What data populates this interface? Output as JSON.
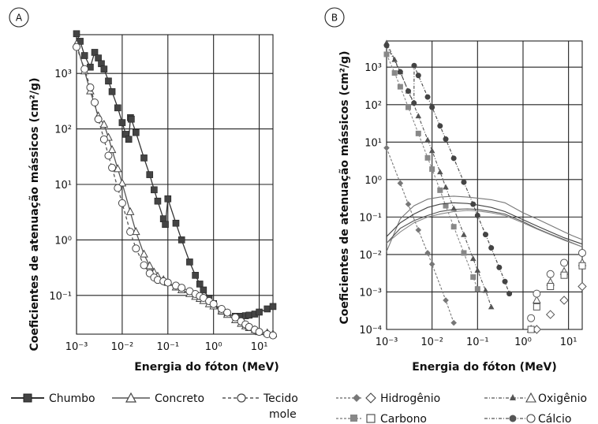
{
  "chart_data": [
    {
      "panel": "A",
      "type": "line",
      "xlabel": "Energia do fóton (MeV)",
      "ylabel": "Coeficientes de atenuação mássicos (cm²/g)",
      "xscale": "log",
      "yscale": "log",
      "xlim": [
        0.001,
        20
      ],
      "ylim": [
        0.02,
        5000
      ],
      "xticks": [
        "10⁻³",
        "10⁻²",
        "10⁻¹",
        "10⁰",
        "10¹"
      ],
      "yticks": [
        "10⁻¹",
        "10⁰",
        "10¹",
        "10²",
        "10³"
      ],
      "grid": true,
      "series": [
        {
          "name": "Chumbo",
          "color": "#333333",
          "marker": "square-filled",
          "dash": "solid",
          "x": [
            0.001,
            0.0012,
            0.0015,
            0.002,
            0.0025,
            0.003,
            0.0035,
            0.004,
            0.005,
            0.006,
            0.008,
            0.01,
            0.012,
            0.0139,
            0.0152,
            0.0158,
            0.02,
            0.03,
            0.04,
            0.05,
            0.06,
            0.08,
            0.088,
            0.1,
            0.15,
            0.2,
            0.3,
            0.4,
            0.5,
            0.6,
            0.8,
            1,
            1.5,
            2,
            3,
            4,
            5,
            6,
            8,
            10,
            15,
            20
          ],
          "y": [
            5200,
            3800,
            2100,
            1300,
            2400,
            1900,
            1500,
            1200,
            730,
            470,
            240,
            130,
            80,
            65,
            160,
            150,
            86,
            30,
            15,
            8,
            5.0,
            2.4,
            1.9,
            5.5,
            2.0,
            1.0,
            0.4,
            0.23,
            0.16,
            0.125,
            0.089,
            0.071,
            0.052,
            0.046,
            0.042,
            0.042,
            0.043,
            0.044,
            0.046,
            0.05,
            0.057,
            0.063
          ]
        },
        {
          "name": "Concreto",
          "color": "#555555",
          "marker": "triangle-open",
          "dash": "solid",
          "x": [
            0.001,
            0.0015,
            0.002,
            0.003,
            0.004,
            0.005,
            0.006,
            0.008,
            0.01,
            0.015,
            0.02,
            0.03,
            0.04,
            0.05,
            0.06,
            0.08,
            0.1,
            0.15,
            0.2,
            0.3,
            0.4,
            0.5,
            0.6,
            0.8,
            1,
            1.5,
            2,
            3,
            4,
            5,
            6,
            8,
            10,
            15,
            20
          ],
          "y": [
            3400,
            1100,
            480,
            170,
            120,
            70,
            42,
            19,
            10.5,
            3.2,
            1.4,
            0.55,
            0.34,
            0.26,
            0.22,
            0.19,
            0.17,
            0.14,
            0.125,
            0.107,
            0.095,
            0.087,
            0.08,
            0.07,
            0.064,
            0.052,
            0.045,
            0.036,
            0.031,
            0.028,
            0.026,
            0.024,
            0.022,
            0.021,
            0.02
          ]
        },
        {
          "name": "Tecido mole",
          "color": "#555555",
          "marker": "circle-open",
          "dash": "dashed",
          "x": [
            0.001,
            0.0015,
            0.002,
            0.0025,
            0.003,
            0.004,
            0.005,
            0.006,
            0.008,
            0.01,
            0.015,
            0.02,
            0.03,
            0.04,
            0.05,
            0.06,
            0.08,
            0.1,
            0.15,
            0.2,
            0.3,
            0.4,
            0.5,
            0.6,
            0.8,
            1,
            1.5,
            2,
            3,
            4,
            5,
            6,
            8,
            10,
            15,
            20
          ],
          "y": [
            3000,
            1200,
            560,
            300,
            150,
            65,
            33,
            20,
            8.6,
            4.6,
            1.4,
            0.7,
            0.35,
            0.25,
            0.21,
            0.19,
            0.18,
            0.17,
            0.15,
            0.137,
            0.119,
            0.106,
            0.097,
            0.09,
            0.079,
            0.07,
            0.057,
            0.049,
            0.04,
            0.034,
            0.03,
            0.027,
            0.024,
            0.022,
            0.02,
            0.019
          ]
        }
      ]
    },
    {
      "panel": "B",
      "type": "line",
      "xlabel": "Energia do fóton (MeV)",
      "ylabel": "Coeficientes de atenuação mássicos (cm²/g)",
      "xscale": "log",
      "yscale": "log",
      "xlim": [
        0.001,
        20
      ],
      "ylim": [
        0.0001,
        5000
      ],
      "xticks": [
        "10⁻³",
        "10⁻²",
        "10⁻¹",
        "10⁰",
        "10¹"
      ],
      "yticks": [
        "10⁻⁴",
        "10⁻³",
        "10⁻²",
        "10⁻¹",
        "10⁰",
        "10¹",
        "10²",
        "10³"
      ],
      "grid": true,
      "series": [
        {
          "name": "Hidrogênio",
          "color": "#777777",
          "marker": "diamond",
          "photoelectric": {
            "x": [
              0.001,
              0.002,
              0.003,
              0.005,
              0.008,
              0.01,
              0.02,
              0.03
            ],
            "y": [
              7.0,
              0.8,
              0.22,
              0.045,
              0.011,
              0.0055,
              0.0006,
              0.00015
            ]
          },
          "scatter": {
            "x": [
              0.001,
              0.002,
              0.004,
              0.008,
              0.015,
              0.03,
              0.06,
              0.1,
              0.2,
              0.4,
              1,
              2,
              4,
              8,
              12,
              20
            ],
            "y": [
              0.012,
              0.09,
              0.2,
              0.3,
              0.34,
              0.36,
              0.34,
              0.32,
              0.29,
              0.24,
              0.13,
              0.09,
              0.06,
              0.04,
              0.032,
              0.025
            ]
          },
          "pair": {
            "x": [
              2,
              4,
              8,
              20
            ],
            "y": [
              0.0001,
              0.00025,
              0.0006,
              0.0014
            ]
          }
        },
        {
          "name": "Oxigênio",
          "color": "#555555",
          "marker": "triangle",
          "photoelectric": {
            "x": [
              0.001,
              0.0015,
              0.002,
              0.003,
              0.005,
              0.008,
              0.01,
              0.015,
              0.02,
              0.03,
              0.05,
              0.08,
              0.1,
              0.15,
              0.2
            ],
            "y": [
              4500,
              1600,
              750,
              230,
              50,
              11.5,
              5.9,
              1.6,
              0.63,
              0.17,
              0.034,
              0.0078,
              0.0038,
              0.0011,
              0.0004
            ]
          },
          "scatter": {
            "x": [
              0.001,
              0.002,
              0.004,
              0.008,
              0.015,
              0.03,
              0.06,
              0.1,
              0.2,
              0.4,
              1,
              2,
              4,
              8,
              20
            ],
            "y": [
              0.02,
              0.05,
              0.08,
              0.11,
              0.14,
              0.16,
              0.165,
              0.16,
              0.14,
              0.12,
              0.075,
              0.05,
              0.035,
              0.025,
              0.016
            ]
          },
          "pair": {
            "x": [
              1.5,
              2,
              4,
              8,
              20
            ],
            "y": [
              0.0001,
              0.0006,
              0.0018,
              0.0035,
              0.006
            ]
          }
        },
        {
          "name": "Carbono",
          "color": "#888888",
          "marker": "square",
          "photoelectric": {
            "x": [
              0.001,
              0.0015,
              0.002,
              0.003,
              0.005,
              0.008,
              0.01,
              0.015,
              0.02,
              0.03,
              0.05,
              0.08,
              0.1
            ],
            "y": [
              2200,
              700,
              300,
              85,
              17,
              3.8,
              1.9,
              0.52,
              0.2,
              0.055,
              0.011,
              0.0025,
              0.0012
            ]
          },
          "scatter": {
            "x": [
              0.001,
              0.002,
              0.004,
              0.008,
              0.015,
              0.03,
              0.06,
              0.1,
              0.2,
              0.4,
              1,
              2,
              4,
              8,
              20
            ],
            "y": [
              0.02,
              0.04,
              0.07,
              0.1,
              0.12,
              0.14,
              0.15,
              0.145,
              0.13,
              0.11,
              0.07,
              0.048,
              0.034,
              0.024,
              0.016
            ]
          },
          "pair": {
            "x": [
              1.5,
              2,
              4,
              8,
              20
            ],
            "y": [
              0.0001,
              0.0004,
              0.0014,
              0.0028,
              0.005
            ]
          }
        },
        {
          "name": "Cálcio",
          "color": "#444444",
          "marker": "circle",
          "photoelectric": {
            "x": [
              0.001,
              0.002,
              0.003,
              0.004,
              0.00404,
              0.005,
              0.008,
              0.01,
              0.015,
              0.02,
              0.03,
              0.05,
              0.08,
              0.1,
              0.15,
              0.2,
              0.3,
              0.4,
              0.5
            ],
            "y": [
              3800,
              750,
              230,
              110,
              1100,
              600,
              160,
              85,
              27,
              12,
              3.7,
              0.85,
              0.22,
              0.11,
              0.034,
              0.015,
              0.0045,
              0.0019,
              0.0009
            ]
          },
          "scatter": {
            "x": [
              0.001,
              0.002,
              0.004,
              0.008,
              0.015,
              0.03,
              0.06,
              0.1,
              0.2,
              0.4,
              1,
              2,
              4,
              8,
              20
            ],
            "y": [
              0.03,
              0.07,
              0.12,
              0.18,
              0.22,
              0.24,
              0.23,
              0.21,
              0.18,
              0.14,
              0.085,
              0.058,
              0.04,
              0.028,
              0.019
            ]
          },
          "pair": {
            "x": [
              1.5,
              2,
              4,
              8,
              20
            ],
            "y": [
              0.0002,
              0.0009,
              0.003,
              0.006,
              0.011
            ]
          }
        }
      ]
    }
  ],
  "panel_labels": {
    "a": "A",
    "b": "B"
  },
  "axis_text": {
    "ylabel_a": "Coeficientes de atenuação mássicos (cm²/g)",
    "ylabel_b": "Coeficientes de atenuação mássicos (cm²/g)",
    "xlabel_a": "Energia do fóton (MeV)",
    "xlabel_b": "Energia do fóton (MeV)"
  },
  "legend_a": {
    "chumbo": "Chumbo",
    "concreto": "Concreto",
    "tecido_line1": "Tecido",
    "tecido_line2": "mole"
  },
  "legend_b": {
    "hidrogenio": "Hidrogênio",
    "oxigenio": "Oxigênio",
    "carbono": "Carbono",
    "calcio": "Cálcio"
  }
}
